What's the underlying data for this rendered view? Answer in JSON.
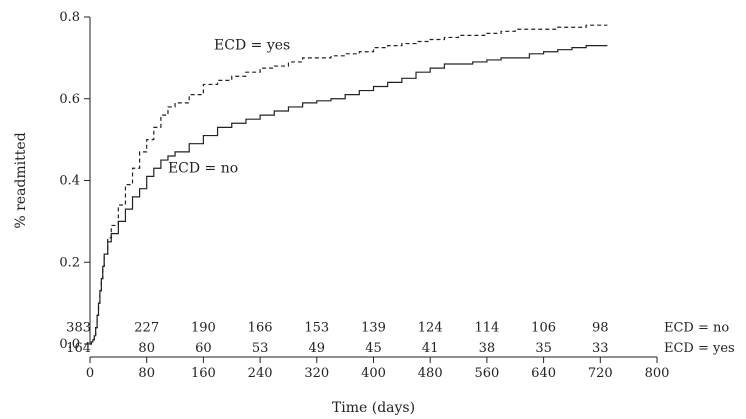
{
  "chart_data": {
    "type": "line",
    "xlabel": "Time (days)",
    "ylabel": "% readmitted",
    "xlim": [
      0,
      800
    ],
    "ylim": [
      0,
      0.8
    ],
    "xticks": [
      0,
      80,
      160,
      240,
      320,
      400,
      480,
      560,
      640,
      720,
      800
    ],
    "yticks": [
      0.0,
      0.2,
      0.4,
      0.6,
      0.8
    ],
    "xtick_labels": [
      "0",
      "80",
      "160",
      "240",
      "320",
      "400",
      "480",
      "560",
      "640",
      "720",
      "800"
    ],
    "ytick_labels": [
      "0.0",
      "0.2",
      "0.4",
      "0.6",
      "0.8"
    ],
    "grid": false,
    "step": true,
    "series": [
      {
        "name": "ECD = no",
        "style": "solid",
        "color": "#222222",
        "x": [
          0,
          2,
          4,
          6,
          8,
          10,
          12,
          14,
          16,
          18,
          20,
          25,
          30,
          40,
          50,
          60,
          70,
          80,
          90,
          100,
          110,
          120,
          140,
          160,
          180,
          200,
          220,
          240,
          260,
          280,
          300,
          320,
          340,
          360,
          380,
          400,
          420,
          440,
          460,
          480,
          500,
          520,
          540,
          560,
          580,
          600,
          620,
          640,
          660,
          680,
          700,
          730
        ],
        "y": [
          0.0,
          0.005,
          0.01,
          0.02,
          0.04,
          0.07,
          0.1,
          0.13,
          0.16,
          0.19,
          0.22,
          0.25,
          0.27,
          0.3,
          0.33,
          0.36,
          0.38,
          0.41,
          0.43,
          0.45,
          0.46,
          0.47,
          0.49,
          0.51,
          0.53,
          0.54,
          0.55,
          0.56,
          0.57,
          0.58,
          0.59,
          0.595,
          0.6,
          0.61,
          0.62,
          0.63,
          0.64,
          0.65,
          0.665,
          0.675,
          0.685,
          0.685,
          0.69,
          0.695,
          0.7,
          0.7,
          0.71,
          0.715,
          0.72,
          0.725,
          0.73,
          0.73
        ]
      },
      {
        "name": "ECD = yes",
        "style": "dashed",
        "color": "#222222",
        "x": [
          0,
          2,
          4,
          6,
          8,
          10,
          12,
          14,
          16,
          18,
          20,
          25,
          30,
          40,
          50,
          60,
          70,
          80,
          90,
          100,
          110,
          120,
          140,
          160,
          180,
          200,
          220,
          240,
          260,
          280,
          300,
          320,
          340,
          360,
          380,
          400,
          420,
          440,
          460,
          480,
          500,
          520,
          540,
          560,
          580,
          600,
          620,
          640,
          660,
          680,
          700,
          730
        ],
        "y": [
          0.0,
          0.005,
          0.01,
          0.02,
          0.04,
          0.07,
          0.1,
          0.13,
          0.16,
          0.19,
          0.22,
          0.26,
          0.29,
          0.34,
          0.39,
          0.43,
          0.47,
          0.5,
          0.53,
          0.56,
          0.58,
          0.59,
          0.61,
          0.635,
          0.645,
          0.655,
          0.665,
          0.675,
          0.68,
          0.69,
          0.7,
          0.7,
          0.705,
          0.71,
          0.715,
          0.725,
          0.73,
          0.735,
          0.74,
          0.745,
          0.75,
          0.755,
          0.755,
          0.76,
          0.765,
          0.77,
          0.77,
          0.77,
          0.775,
          0.775,
          0.78,
          0.78
        ]
      }
    ],
    "annotations": [
      {
        "text": "ECD = yes",
        "x": 175,
        "y": 0.72,
        "series": "ECD = yes"
      },
      {
        "text": "ECD = no",
        "x": 110,
        "y": 0.42,
        "series": "ECD = no"
      }
    ],
    "risk_table": {
      "times": [
        0,
        80,
        160,
        240,
        320,
        400,
        480,
        560,
        640,
        720
      ],
      "rows": [
        {
          "label": "ECD = no",
          "y": 0.04,
          "counts": [
            "383",
            "227",
            "190",
            "166",
            "153",
            "139",
            "124",
            "114",
            "106",
            "98"
          ]
        },
        {
          "label": "ECD = yes",
          "y": -0.01,
          "counts": [
            "164",
            "80",
            "60",
            "53",
            "49",
            "45",
            "41",
            "38",
            "35",
            "33"
          ]
        }
      ]
    }
  }
}
